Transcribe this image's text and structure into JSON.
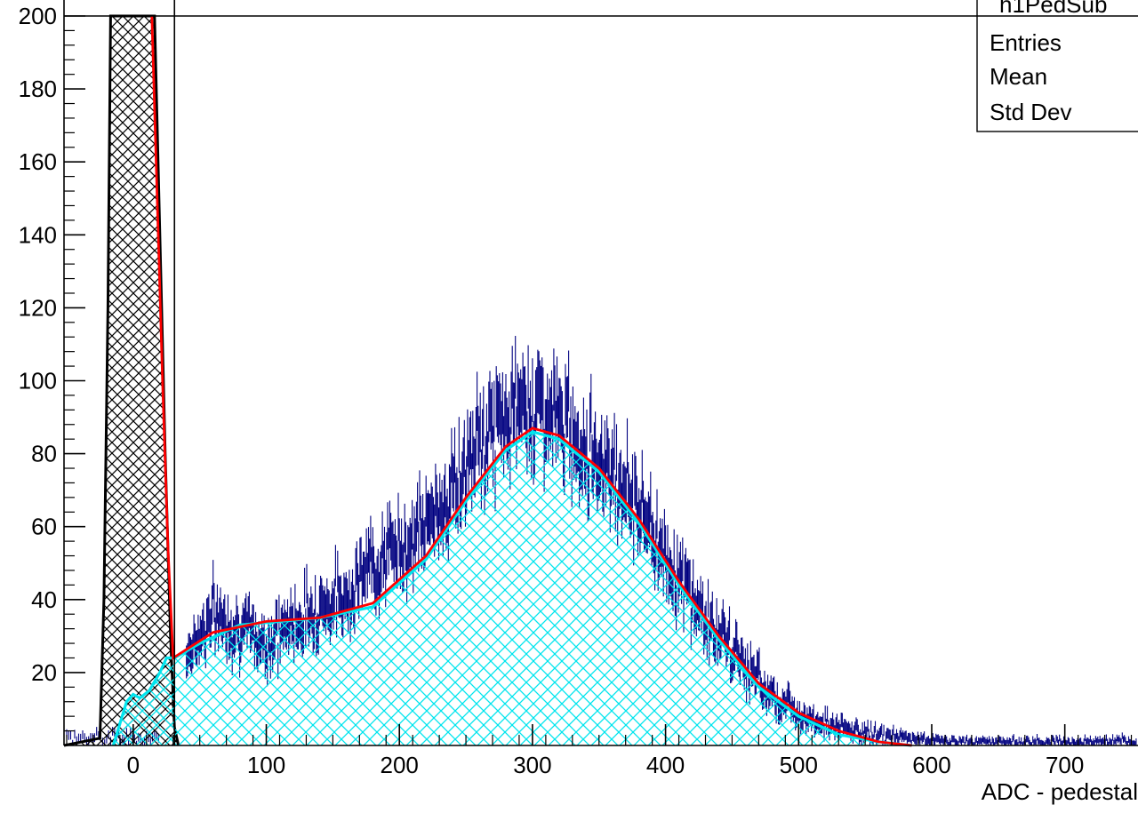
{
  "chart_data": {
    "type": "histogram",
    "xlabel": "ADC - pedestal",
    "ylabel": "",
    "xlim": [
      -52,
      755
    ],
    "ylim": [
      0,
      200
    ],
    "x_ticks": [
      0,
      100,
      200,
      300,
      400,
      500,
      600,
      700
    ],
    "y_ticks": [
      20,
      40,
      60,
      80,
      100,
      120,
      140,
      160,
      180,
      200
    ],
    "grid": false,
    "cut_line_x": 31,
    "stats_box": {
      "title": "h1PedSub",
      "rows": [
        {
          "label": "Entries",
          "value": ""
        },
        {
          "label": "Mean",
          "value": ""
        },
        {
          "label": "Std Dev",
          "value": ""
        }
      ]
    },
    "pedestal_peak": {
      "description": "black hatched gaussian pedestal peak",
      "points": [
        [
          -52,
          0
        ],
        [
          -25,
          2
        ],
        [
          -22,
          40
        ],
        [
          -19,
          120
        ],
        [
          -17,
          200
        ],
        [
          16,
          200
        ],
        [
          20,
          140
        ],
        [
          24,
          80
        ],
        [
          28,
          30
        ],
        [
          31,
          5
        ],
        [
          34,
          0
        ]
      ]
    },
    "fit_total": {
      "color": "#ff0000",
      "points": [
        [
          14,
          200
        ],
        [
          18,
          150
        ],
        [
          22,
          100
        ],
        [
          26,
          55
        ],
        [
          30,
          24
        ],
        [
          60,
          31
        ],
        [
          100,
          34
        ],
        [
          140,
          35
        ],
        [
          180,
          39
        ],
        [
          220,
          52
        ],
        [
          250,
          68
        ],
        [
          280,
          82
        ],
        [
          300,
          87
        ],
        [
          320,
          85
        ],
        [
          350,
          76
        ],
        [
          380,
          62
        ],
        [
          410,
          45
        ],
        [
          440,
          30
        ],
        [
          470,
          17
        ],
        [
          500,
          9
        ],
        [
          530,
          4
        ],
        [
          560,
          1
        ],
        [
          585,
          0
        ]
      ]
    },
    "signal_component": {
      "color": "#00e5ee",
      "points": [
        [
          -15,
          0
        ],
        [
          -5,
          12
        ],
        [
          0,
          14
        ],
        [
          5,
          13
        ],
        [
          12,
          15
        ],
        [
          20,
          20
        ],
        [
          25,
          24
        ],
        [
          31,
          24
        ],
        [
          50,
          28
        ],
        [
          80,
          33
        ],
        [
          110,
          34
        ],
        [
          140,
          35
        ],
        [
          180,
          38
        ],
        [
          220,
          51
        ],
        [
          250,
          67
        ],
        [
          280,
          81
        ],
        [
          300,
          86
        ],
        [
          320,
          84
        ],
        [
          350,
          75
        ],
        [
          380,
          61
        ],
        [
          410,
          44
        ],
        [
          440,
          29
        ],
        [
          470,
          16
        ],
        [
          500,
          8
        ],
        [
          530,
          3
        ],
        [
          560,
          1
        ],
        [
          585,
          0
        ]
      ]
    },
    "data_series": {
      "color": "#000080",
      "description": "noisy ADC histogram bins with error bars",
      "points": [
        [
          40,
          25
        ],
        [
          60,
          36
        ],
        [
          80,
          32
        ],
        [
          100,
          28
        ],
        [
          120,
          34
        ],
        [
          140,
          38
        ],
        [
          160,
          41
        ],
        [
          180,
          50
        ],
        [
          200,
          54
        ],
        [
          220,
          60
        ],
        [
          240,
          70
        ],
        [
          260,
          82
        ],
        [
          280,
          90
        ],
        [
          300,
          94
        ],
        [
          320,
          89
        ],
        [
          340,
          82
        ],
        [
          360,
          76
        ],
        [
          380,
          66
        ],
        [
          400,
          52
        ],
        [
          420,
          40
        ],
        [
          440,
          30
        ],
        [
          460,
          22
        ],
        [
          480,
          14
        ],
        [
          500,
          9
        ],
        [
          520,
          6
        ],
        [
          540,
          4
        ],
        [
          560,
          3
        ],
        [
          580,
          2
        ],
        [
          620,
          1
        ],
        [
          660,
          1
        ],
        [
          700,
          1
        ],
        [
          750,
          1
        ]
      ]
    }
  }
}
